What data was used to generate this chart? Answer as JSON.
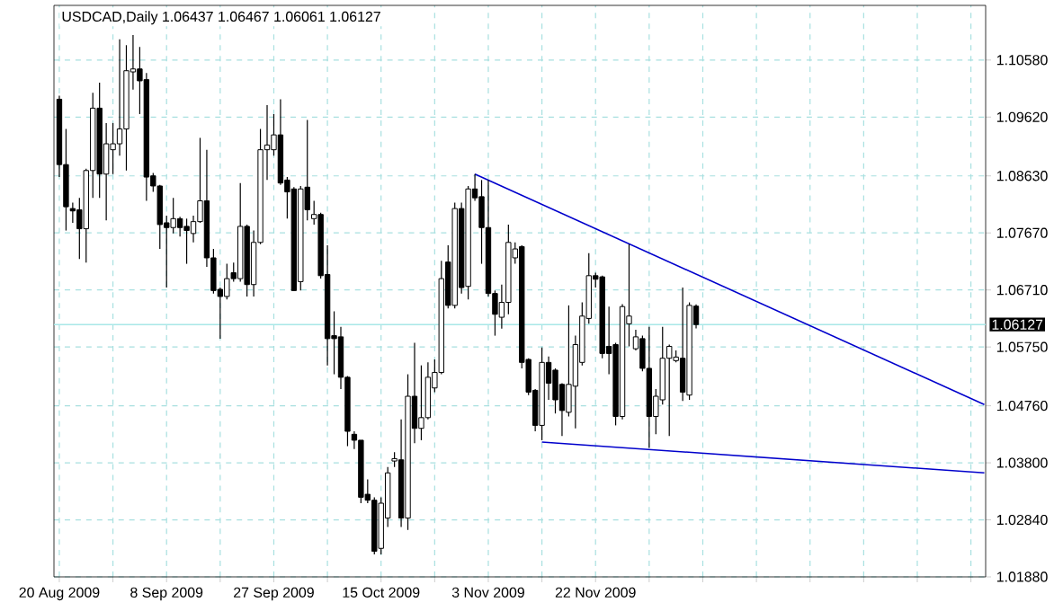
{
  "chart_data": {
    "type": "candlestick",
    "title": "USDCAD,Daily  1.06437 1.06467 1.06061 1.06127",
    "categories": [
      "20 Aug 2009",
      null,
      null,
      null,
      null,
      null,
      null,
      null,
      null,
      null,
      null,
      null,
      null,
      null,
      null,
      null,
      "8 Sep 2009",
      null,
      null,
      null,
      null,
      null,
      null,
      null,
      null,
      null,
      null,
      null,
      null,
      null,
      null,
      null,
      "27 Sep 2009",
      null,
      null,
      null,
      null,
      null,
      null,
      null,
      null,
      null,
      null,
      null,
      null,
      null,
      null,
      null,
      "15 Oct 2009",
      null,
      null,
      null,
      null,
      null,
      null,
      null,
      null,
      null,
      null,
      null,
      null,
      null,
      null,
      null,
      "3 Nov 2009",
      null,
      null,
      null,
      null,
      null,
      null,
      null,
      null,
      null,
      null,
      null,
      null,
      null,
      null,
      null,
      "22 Nov 2009",
      null,
      null,
      null,
      null,
      null,
      null,
      null,
      null,
      null,
      null,
      null,
      null,
      null,
      null,
      null,
      null,
      null,
      null,
      null,
      null,
      null,
      null,
      null,
      null,
      null,
      null,
      null,
      null,
      null,
      null,
      null,
      null,
      null,
      null,
      null,
      null,
      null,
      null,
      null,
      null,
      null,
      null,
      null,
      null,
      null,
      null,
      null,
      null,
      null,
      null,
      null,
      null,
      null,
      null,
      null,
      null,
      null,
      null
    ],
    "ohlc": [
      [
        1.0992,
        1.0998,
        1.0861,
        1.0882
      ],
      [
        1.0882,
        1.0942,
        1.0771,
        1.0811
      ],
      [
        1.0808,
        1.0818,
        1.0784,
        1.0804
      ],
      [
        1.0806,
        1.0826,
        1.0723,
        1.0774
      ],
      [
        1.0774,
        1.0875,
        1.0717,
        1.0872
      ],
      [
        1.0872,
        1.1003,
        1.0826,
        1.0977
      ],
      [
        1.0977,
        1.102,
        1.0826,
        1.0866
      ],
      [
        1.0866,
        1.0952,
        1.0788,
        1.0917
      ],
      [
        1.0907,
        1.0952,
        1.0866,
        1.0917
      ],
      [
        1.0917,
        1.1093,
        1.0897,
        1.0942
      ],
      [
        1.0942,
        1.1083,
        1.0872,
        1.104
      ],
      [
        1.1038,
        1.11,
        1.1008,
        1.1043
      ],
      [
        1.1043,
        1.108,
        1.0967,
        1.1023
      ],
      [
        1.1025,
        1.1036,
        1.0821,
        1.0861
      ],
      [
        1.0863,
        1.0868,
        1.0836,
        1.0846
      ],
      [
        1.0846,
        1.0848,
        1.074,
        1.0781
      ],
      [
        1.0784,
        1.0796,
        1.0675,
        1.0776
      ],
      [
        1.0776,
        1.0826,
        1.0766,
        1.0791
      ],
      [
        1.0791,
        1.0794,
        1.0761,
        1.0776
      ],
      [
        1.0778,
        1.0791,
        1.0715,
        1.0771
      ],
      [
        1.0766,
        1.0796,
        1.0751,
        1.0786
      ],
      [
        1.0786,
        1.0927,
        1.0784,
        1.0821
      ],
      [
        1.0821,
        1.0907,
        1.071,
        1.0725
      ],
      [
        1.0725,
        1.074,
        1.0665,
        1.067
      ],
      [
        1.0672,
        1.0675,
        1.0589,
        1.066
      ],
      [
        1.066,
        1.0715,
        1.0655,
        1.069
      ],
      [
        1.07,
        1.0717,
        1.0685,
        1.069
      ],
      [
        1.069,
        1.0851,
        1.0685,
        1.0778
      ],
      [
        1.0778,
        1.0781,
        1.066,
        1.068
      ],
      [
        1.068,
        1.0771,
        1.066,
        1.0751
      ],
      [
        1.0751,
        1.0942,
        1.0748,
        1.0907
      ],
      [
        1.0907,
        1.0982,
        1.0856,
        1.0915
      ],
      [
        1.0907,
        1.0967,
        1.0897,
        1.0932
      ],
      [
        1.0932,
        1.0992,
        1.0848,
        1.0851
      ],
      [
        1.0856,
        1.0861,
        1.0791,
        1.0836
      ],
      [
        1.0841,
        1.0844,
        1.067,
        1.067
      ],
      [
        1.0685,
        1.0846,
        1.067,
        1.0841
      ],
      [
        1.0844,
        1.0957,
        1.0788,
        1.0806
      ],
      [
        1.0791,
        1.0821,
        1.0781,
        1.0798
      ],
      [
        1.0798,
        1.0801,
        1.069,
        1.0695
      ],
      [
        1.0697,
        1.0746,
        1.0544,
        1.0589
      ],
      [
        1.0594,
        1.0635,
        1.0529,
        1.0589
      ],
      [
        1.0592,
        1.0609,
        1.0504,
        1.0524
      ],
      [
        1.0524,
        1.0526,
        1.0408,
        1.0433
      ],
      [
        1.0428,
        1.0433,
        1.0403,
        1.0418
      ],
      [
        1.0418,
        1.0418,
        1.0312,
        1.0322
      ],
      [
        1.0327,
        1.0352,
        1.0312,
        1.0317
      ],
      [
        1.0317,
        1.0322,
        1.0226,
        1.0231
      ],
      [
        1.0236,
        1.0322,
        1.0226,
        1.0312
      ],
      [
        1.0287,
        1.0373,
        1.0272,
        1.0363
      ],
      [
        1.0383,
        1.0398,
        1.0373,
        1.0387
      ],
      [
        1.0385,
        1.0453,
        1.0272,
        1.0287
      ],
      [
        1.0287,
        1.0529,
        1.0267,
        1.0492
      ],
      [
        1.0492,
        1.0582,
        1.0413,
        1.0438
      ],
      [
        1.0438,
        1.0544,
        1.0418,
        1.0456
      ],
      [
        1.0456,
        1.0549,
        1.0453,
        1.0524
      ],
      [
        1.0506,
        1.0554,
        1.0499,
        1.0532
      ],
      [
        1.0532,
        1.072,
        1.0529,
        1.069
      ],
      [
        1.0718,
        1.0746,
        1.064,
        1.0645
      ],
      [
        1.0645,
        1.0818,
        1.064,
        1.0808
      ],
      [
        1.0808,
        1.0818,
        1.0665,
        1.0675
      ],
      [
        1.0677,
        1.0846,
        1.0655,
        1.0841
      ],
      [
        1.0841,
        1.0866,
        1.0821,
        1.0826
      ],
      [
        1.0828,
        1.0856,
        1.0715,
        1.0776
      ],
      [
        1.0776,
        1.0856,
        1.066,
        1.0665
      ],
      [
        1.0665,
        1.067,
        1.0594,
        1.063
      ],
      [
        1.0625,
        1.068,
        1.0606,
        1.065
      ],
      [
        1.065,
        1.0781,
        1.063,
        1.0751
      ],
      [
        1.0725,
        1.0751,
        1.0715,
        1.074
      ],
      [
        1.0744,
        1.0746,
        1.0539,
        1.0549
      ],
      [
        1.0554,
        1.0556,
        1.0494,
        1.0499
      ],
      [
        1.0502,
        1.0504,
        1.0433,
        1.0443
      ],
      [
        1.0443,
        1.0574,
        1.0418,
        1.0549
      ],
      [
        1.0549,
        1.0559,
        1.0486,
        1.0514
      ],
      [
        1.0536,
        1.0539,
        1.0463,
        1.0486
      ],
      [
        1.0512,
        1.0514,
        1.0425,
        1.0468
      ],
      [
        1.0465,
        1.0645,
        1.0458,
        1.0512
      ],
      [
        1.0509,
        1.0594,
        1.0438,
        1.0579
      ],
      [
        1.0549,
        1.065,
        1.0544,
        1.0627
      ],
      [
        1.0623,
        1.0733,
        1.0614,
        1.0695
      ],
      [
        1.0695,
        1.07,
        1.0675,
        1.0689
      ],
      [
        1.0693,
        1.0695,
        1.0556,
        1.0564
      ],
      [
        1.0576,
        1.0643,
        1.0529,
        1.0564
      ],
      [
        1.0579,
        1.0582,
        1.0443,
        1.0458
      ],
      [
        1.0458,
        1.0647,
        1.0453,
        1.0643
      ],
      [
        1.0614,
        1.0748,
        1.0576,
        1.0627
      ],
      [
        1.0572,
        1.0604,
        1.0569,
        1.0592
      ],
      [
        1.0589,
        1.0594,
        1.0534,
        1.0539
      ],
      [
        1.0539,
        1.0609,
        1.0405,
        1.0458
      ],
      [
        1.0458,
        1.0504,
        1.0428,
        1.0492
      ],
      [
        1.0486,
        1.0609,
        1.0478,
        1.0556
      ],
      [
        1.0556,
        1.0579,
        1.0425,
        1.0576
      ],
      [
        1.0552,
        1.0569,
        1.0549,
        1.0558
      ],
      [
        1.0556,
        1.0675,
        1.0484,
        1.0499
      ],
      [
        1.0494,
        1.065,
        1.0486,
        1.0645
      ],
      [
        1.06437,
        1.06467,
        1.06061,
        1.06127
      ],
      null,
      null,
      null,
      null,
      null,
      null,
      null,
      null,
      null,
      null,
      null,
      null,
      null,
      null,
      null,
      null,
      null,
      null,
      null,
      null,
      null,
      null,
      null,
      null,
      null,
      null,
      null,
      null,
      null,
      null,
      null,
      null,
      null,
      null,
      null,
      null,
      null,
      null,
      null,
      null,
      null,
      null,
      null
    ],
    "series": [
      {
        "type": "line",
        "color": "#0000cc",
        "values": [
          null,
          null,
          null,
          null,
          null,
          null,
          null,
          null,
          null,
          null,
          null,
          null,
          null,
          null,
          null,
          null,
          null,
          null,
          null,
          null,
          null,
          null,
          null,
          null,
          null,
          null,
          null,
          null,
          null,
          null,
          null,
          null,
          null,
          null,
          null,
          null,
          null,
          null,
          null,
          null,
          null,
          null,
          null,
          null,
          null,
          null,
          null,
          null,
          null,
          null,
          null,
          null,
          null,
          null,
          null,
          null,
          null,
          null,
          null,
          null,
          null,
          null,
          1.0866,
          null,
          null,
          null,
          null,
          null,
          null,
          null,
          null,
          null,
          null,
          null,
          null,
          null,
          null,
          null,
          null,
          null,
          null,
          null,
          null,
          null,
          null,
          null,
          null,
          null,
          null,
          null,
          null,
          null,
          null,
          null,
          null,
          null,
          null,
          null,
          null,
          null,
          null,
          null,
          null,
          null,
          null,
          null,
          null,
          null,
          null,
          null,
          null,
          null,
          null,
          null,
          null,
          null,
          null,
          null,
          null,
          null,
          null,
          null,
          null,
          null,
          null,
          null,
          null,
          null,
          null,
          null,
          null,
          null,
          null,
          null,
          null,
          null,
          null,
          null,
          1.0478
        ]
      },
      {
        "type": "line",
        "color": "#0000cc",
        "values": [
          null,
          null,
          null,
          null,
          null,
          null,
          null,
          null,
          null,
          null,
          null,
          null,
          null,
          null,
          null,
          null,
          null,
          null,
          null,
          null,
          null,
          null,
          null,
          null,
          null,
          null,
          null,
          null,
          null,
          null,
          null,
          null,
          null,
          null,
          null,
          null,
          null,
          null,
          null,
          null,
          null,
          null,
          null,
          null,
          null,
          null,
          null,
          null,
          null,
          null,
          null,
          null,
          null,
          null,
          null,
          null,
          null,
          null,
          null,
          null,
          null,
          null,
          null,
          null,
          null,
          null,
          null,
          null,
          null,
          null,
          null,
          null,
          1.0415,
          null,
          null,
          null,
          null,
          null,
          null,
          null,
          null,
          null,
          null,
          null,
          null,
          null,
          null,
          null,
          null,
          null,
          null,
          null,
          null,
          null,
          null,
          null,
          null,
          null,
          null,
          null,
          null,
          null,
          null,
          null,
          null,
          null,
          null,
          null,
          null,
          null,
          null,
          null,
          null,
          null,
          null,
          null,
          null,
          null,
          null,
          null,
          null,
          null,
          null,
          null,
          null,
          null,
          null,
          null,
          null,
          null,
          null,
          null,
          null,
          null,
          null,
          null,
          null,
          null,
          1.0363
        ]
      }
    ],
    "ylim": [
      1.0188,
      1.115
    ],
    "yticks": [
      {
        "value": 1.1058,
        "label": "1.10580"
      },
      {
        "value": 1.0962,
        "label": "1.09620"
      },
      {
        "value": 1.0863,
        "label": "1.08630"
      },
      {
        "value": 1.0767,
        "label": "1.07670"
      },
      {
        "value": 1.0671,
        "label": "1.06710"
      },
      {
        "value": 1.0575,
        "label": "1.05750"
      },
      {
        "value": 1.0476,
        "label": "1.04760"
      },
      {
        "value": 1.038,
        "label": "1.03800"
      },
      {
        "value": 1.0284,
        "label": "1.02840"
      },
      {
        "value": 1.0188,
        "label": "1.01880"
      }
    ],
    "ref_lines": [
      {
        "axis": "y",
        "value": 1.06127,
        "label": "1.06127",
        "color": "#a8e8e8"
      }
    ],
    "grid": true
  }
}
